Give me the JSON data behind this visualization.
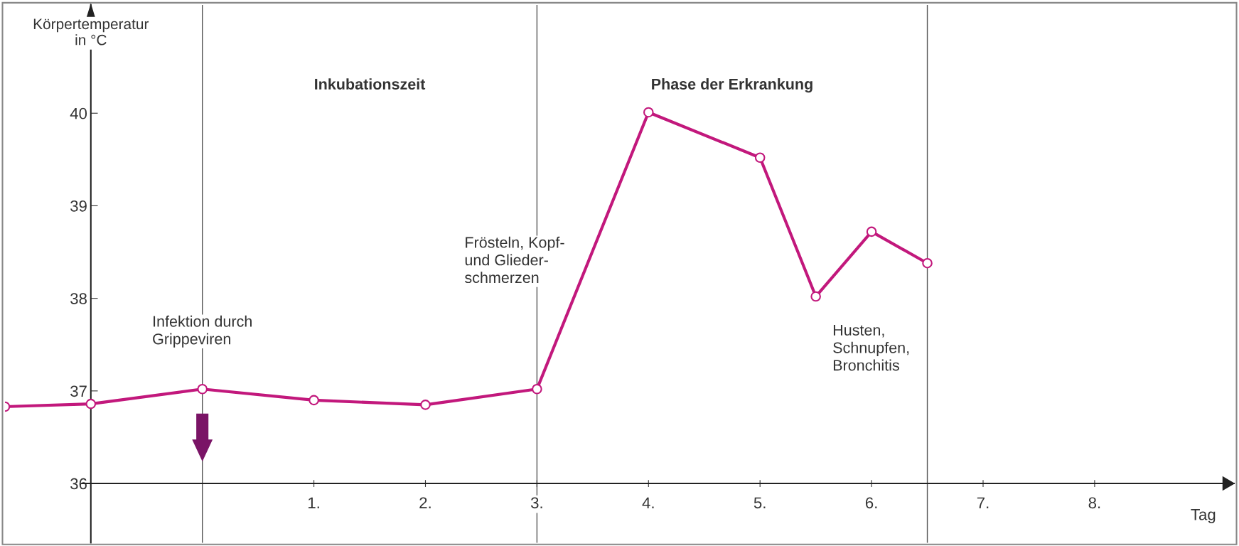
{
  "chart_data": {
    "type": "line",
    "ylabel": "Körpertemperatur\nin °C",
    "xlabel": "Tag",
    "x": [
      -1.77,
      -1,
      0,
      1,
      2,
      3,
      4,
      5,
      5.5,
      6,
      6.5
    ],
    "series": [
      {
        "color": "#c2187c",
        "values": [
          36.83,
          36.86,
          37.02,
          36.9,
          36.85,
          37.02,
          40.01,
          39.52,
          38.02,
          38.72,
          38.38
        ]
      }
    ],
    "marker": "circle",
    "xlim": [
      -1.77,
      9.25
    ],
    "ylim": [
      35.36,
      41.17
    ],
    "xticks": [
      {
        "value": 1,
        "label": "1."
      },
      {
        "value": 2,
        "label": "2."
      },
      {
        "value": 3,
        "label": "3."
      },
      {
        "value": 4,
        "label": "4."
      },
      {
        "value": 5,
        "label": "5."
      },
      {
        "value": 6,
        "label": "6."
      },
      {
        "value": 7,
        "label": "7."
      },
      {
        "value": 8,
        "label": "8."
      }
    ],
    "yticks": [
      36,
      37,
      38,
      39,
      40
    ],
    "ref_lines": [
      {
        "axis": "x",
        "value": 0,
        "color": "#555555"
      },
      {
        "axis": "x",
        "value": 3,
        "color": "#555555"
      },
      {
        "axis": "x",
        "value": 6.5,
        "color": "#555555"
      }
    ],
    "annotations": [
      "Inkubationszeit",
      "Phase der Erkrankung",
      {
        "text": "Infektion durch\nGrippeviren",
        "x": 0,
        "y": 37.02
      },
      "Frösteln, Kopf-\nund Glieder-\nschmerzen",
      {
        "text": "Husten,\nSchnupfen,\nBronchitis",
        "x": 5.5,
        "y": 38.02
      }
    ],
    "grid": false
  }
}
